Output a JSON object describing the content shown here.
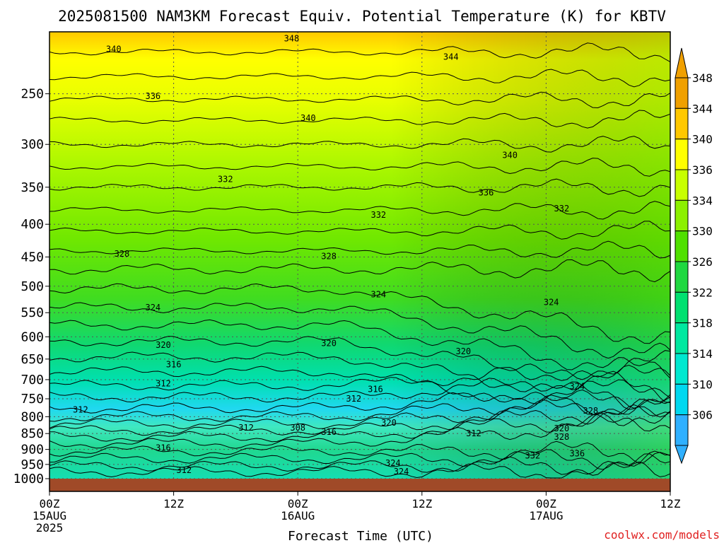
{
  "chart_data": {
    "type": "heatmap",
    "title": "2025081500 NAM3KM Forecast Equiv. Potential Temperature (K) for KBTV",
    "xlabel": "Forecast Time (UTC)",
    "ylabel": "",
    "credit": "coolwx.com/models",
    "x_ticks": [
      {
        "hour": 0,
        "lines": [
          "00Z",
          "15AUG",
          "2025"
        ]
      },
      {
        "hour": 12,
        "lines": [
          "12Z"
        ]
      },
      {
        "hour": 24,
        "lines": [
          "00Z",
          "16AUG"
        ]
      },
      {
        "hour": 36,
        "lines": [
          "12Z"
        ]
      },
      {
        "hour": 48,
        "lines": [
          "00Z",
          "17AUG"
        ]
      },
      {
        "hour": 60,
        "lines": [
          "12Z"
        ]
      }
    ],
    "xlim": [
      0,
      60
    ],
    "y_scale": "log",
    "y_ticks": [
      250,
      300,
      350,
      400,
      450,
      500,
      550,
      600,
      650,
      700,
      750,
      800,
      850,
      900,
      950,
      1000
    ],
    "ylim": [
      1000,
      200
    ],
    "colorbar": {
      "labels": [
        348,
        344,
        340,
        336,
        334,
        330,
        326,
        322,
        318,
        314,
        310,
        306
      ],
      "colors": [
        "#f0a000",
        "#ffc800",
        "#ffff00",
        "#c8ff00",
        "#8cf000",
        "#50e000",
        "#20d840",
        "#00e070",
        "#00e8a0",
        "#00e8d0",
        "#00d8f0",
        "#30b0ff"
      ]
    },
    "surface_color": "#a04a28",
    "contour_labels": [
      {
        "text": "348",
        "t": 23.4,
        "p": 205
      },
      {
        "text": "340",
        "t": 6.2,
        "p": 213
      },
      {
        "text": "344",
        "t": 38.8,
        "p": 219
      },
      {
        "text": "336",
        "t": 10,
        "p": 252
      },
      {
        "text": "340",
        "t": 25,
        "p": 273
      },
      {
        "text": "340",
        "t": 44.5,
        "p": 312
      },
      {
        "text": "332",
        "t": 17,
        "p": 340
      },
      {
        "text": "336",
        "t": 42.2,
        "p": 357
      },
      {
        "text": "332",
        "t": 31.8,
        "p": 387
      },
      {
        "text": "332",
        "t": 49.5,
        "p": 378
      },
      {
        "text": "328",
        "t": 7,
        "p": 445
      },
      {
        "text": "328",
        "t": 27,
        "p": 449
      },
      {
        "text": "324",
        "t": 31.8,
        "p": 515
      },
      {
        "text": "324",
        "t": 48.5,
        "p": 530
      },
      {
        "text": "324",
        "t": 10,
        "p": 540
      },
      {
        "text": "320",
        "t": 27,
        "p": 614
      },
      {
        "text": "320",
        "t": 11,
        "p": 618
      },
      {
        "text": "320",
        "t": 40,
        "p": 632
      },
      {
        "text": "316",
        "t": 12,
        "p": 663
      },
      {
        "text": "312",
        "t": 11,
        "p": 710
      },
      {
        "text": "316",
        "t": 31.5,
        "p": 725
      },
      {
        "text": "312",
        "t": 29.4,
        "p": 750
      },
      {
        "text": "324",
        "t": 51,
        "p": 717
      },
      {
        "text": "312",
        "t": 3,
        "p": 780
      },
      {
        "text": "328",
        "t": 52.3,
        "p": 783
      },
      {
        "text": "320",
        "t": 32.8,
        "p": 818
      },
      {
        "text": "312",
        "t": 19,
        "p": 833
      },
      {
        "text": "308",
        "t": 24,
        "p": 833
      },
      {
        "text": "316",
        "t": 27,
        "p": 845
      },
      {
        "text": "312",
        "t": 41,
        "p": 850
      },
      {
        "text": "320",
        "t": 49.5,
        "p": 835
      },
      {
        "text": "328",
        "t": 49.5,
        "p": 860
      },
      {
        "text": "316",
        "t": 11,
        "p": 895
      },
      {
        "text": "332",
        "t": 46.7,
        "p": 920
      },
      {
        "text": "336",
        "t": 51,
        "p": 913
      },
      {
        "text": "324",
        "t": 33.2,
        "p": 945
      },
      {
        "text": "312",
        "t": 13,
        "p": 970
      },
      {
        "text": "324",
        "t": 34,
        "p": 975
      }
    ]
  }
}
